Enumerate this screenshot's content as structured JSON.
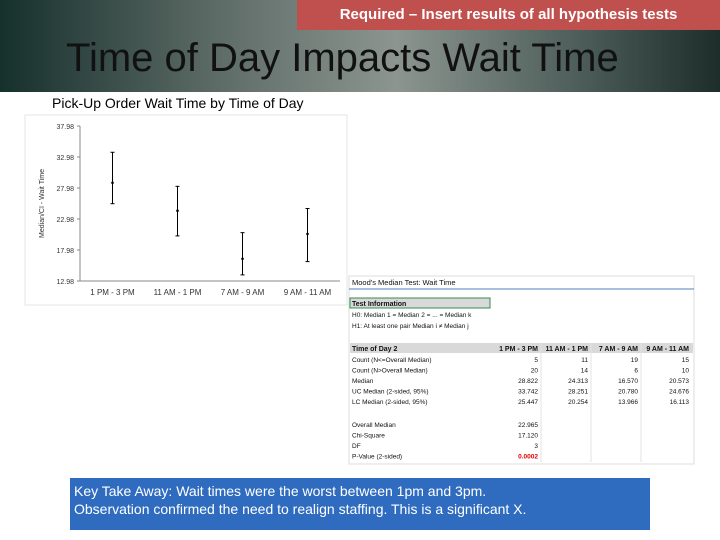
{
  "header": {
    "banner": "Required – Insert results of all hypothesis tests",
    "title": "Time of Day Impacts Wait Time"
  },
  "chart_data": {
    "type": "interval",
    "title": "Pick-Up Order Wait Time by Time of Day",
    "ylabel": "Median/CI - Wait Time",
    "categories": [
      "1 PM - 3 PM",
      "11 AM - 1 PM",
      "7 AM - 9 AM",
      "9 AM - 11 AM"
    ],
    "series": [
      {
        "name": "Median",
        "values": [
          28.822,
          24.313,
          16.57,
          20.573
        ]
      },
      {
        "name": "UC Median",
        "values": [
          33.742,
          28.251,
          20.78,
          24.676
        ]
      },
      {
        "name": "LC Median",
        "values": [
          25.447,
          20.254,
          13.966,
          16.113
        ]
      }
    ],
    "color": "#000000",
    "ylim": [
      12.98,
      37.98
    ],
    "yticks": [
      12.98,
      17.98,
      22.98,
      27.98,
      32.98,
      37.98
    ]
  },
  "table": {
    "title": "Mood's Median Test: Wait Time",
    "section": "Test Information",
    "h0": "H0: Median 1 = Median 2 = ... = Median k",
    "h1": "H1: At least one pair Median i ≠ Median j",
    "columns": [
      "Time of Day 2",
      "1 PM - 3 PM",
      "11 AM - 1 PM",
      "7 AM - 9 AM",
      "9 AM - 11 AM"
    ],
    "rows": [
      [
        "Count (N<=Overall Median)",
        "5",
        "11",
        "19",
        "15"
      ],
      [
        "Count (N>Overall Median)",
        "20",
        "14",
        "6",
        "10"
      ],
      [
        "Median",
        "28.822",
        "24.313",
        "16.570",
        "20.573"
      ],
      [
        "UC Median (2-sided, 95%)",
        "33.742",
        "28.251",
        "20.780",
        "24.676"
      ],
      [
        "LC Median (2-sided, 95%)",
        "25.447",
        "20.254",
        "13.966",
        "16.113"
      ]
    ],
    "stats": [
      [
        "Overall Median",
        "22.965"
      ],
      [
        "Chi-Square",
        "17.120"
      ],
      [
        "DF",
        "3"
      ],
      [
        "P-Value (2-sided)",
        "0.0002"
      ]
    ]
  },
  "takeaway": [
    "Key Take Away: Wait times were the worst between 1pm and 3pm.",
    "Observation confirmed the need to realign staffing. This is a significant X."
  ]
}
